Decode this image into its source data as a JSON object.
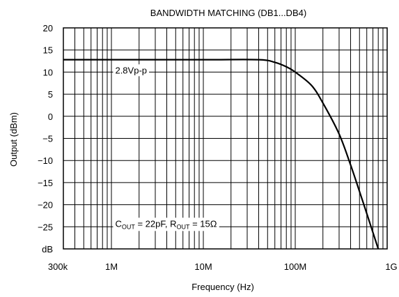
{
  "chart_data": {
    "type": "line",
    "title": "BANDWIDTH MATCHING (DB1...DB4)",
    "xlabel": "Frequency (Hz)",
    "ylabel": "Output  (dBm)",
    "x_scale": "log",
    "x_range_hz": [
      300000,
      1000000000
    ],
    "ylim": [
      -30,
      20
    ],
    "grid": true,
    "x_tick_labels": [
      {
        "value": 300000,
        "label": "300k"
      },
      {
        "value": 1000000,
        "label": "1M"
      },
      {
        "value": 10000000,
        "label": "10M"
      },
      {
        "value": 100000000,
        "label": "100M"
      },
      {
        "value": 1000000000,
        "label": "1G"
      }
    ],
    "y_tick_labels": [
      {
        "value": 20,
        "label": "20"
      },
      {
        "value": 15,
        "label": "15"
      },
      {
        "value": 10,
        "label": "10"
      },
      {
        "value": 5,
        "label": "5"
      },
      {
        "value": 0,
        "label": "0"
      },
      {
        "value": -5,
        "label": "−5"
      },
      {
        "value": -10,
        "label": "−10"
      },
      {
        "value": -15,
        "label": "−15"
      },
      {
        "value": -20,
        "label": "−20"
      },
      {
        "value": -25,
        "label": "−25"
      },
      {
        "value": -30,
        "label": "dB"
      }
    ],
    "series": [
      {
        "points": [
          {
            "x": 300000,
            "y": 12.8
          },
          {
            "x": 1000000,
            "y": 12.8
          },
          {
            "x": 10000000,
            "y": 12.8
          },
          {
            "x": 40000000,
            "y": 12.8
          },
          {
            "x": 60000000,
            "y": 12.2
          },
          {
            "x": 80000000,
            "y": 11.2
          },
          {
            "x": 100000000,
            "y": 10.0
          },
          {
            "x": 150000000,
            "y": 7.0
          },
          {
            "x": 200000000,
            "y": 3.0
          },
          {
            "x": 300000000,
            "y": -4.0
          },
          {
            "x": 400000000,
            "y": -11.0
          },
          {
            "x": 500000000,
            "y": -17.0
          },
          {
            "x": 600000000,
            "y": -22.0
          },
          {
            "x": 800000000,
            "y": -30.0
          }
        ]
      }
    ],
    "annotations": [
      {
        "text": "2.8Vp-p",
        "x": 1100000,
        "y": 9.7
      },
      {
        "x": 1100000,
        "y": -25.0,
        "parts": [
          {
            "t": "C"
          },
          {
            "t": "OUT",
            "sub": true
          },
          {
            "t": " = 22pF, R"
          },
          {
            "t": "OUT",
            "sub": true
          },
          {
            "t": " = 15Ω"
          }
        ]
      }
    ]
  }
}
